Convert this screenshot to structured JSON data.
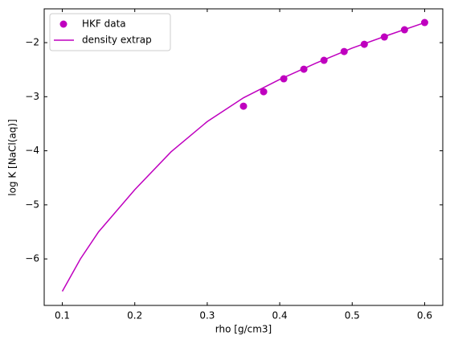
{
  "chart_data": {
    "type": "scatter",
    "xlabel": "rho [g/cm3]",
    "ylabel": "log K [NaCl(aq)]",
    "xlim": [
      0.075,
      0.625
    ],
    "ylim": [
      -6.86,
      -1.375
    ],
    "xticks": [
      0.1,
      0.2,
      0.3,
      0.4,
      0.5,
      0.6
    ],
    "yticks": [
      {
        "value": -6,
        "label": "−6"
      },
      {
        "value": -5,
        "label": "−5"
      },
      {
        "value": -4,
        "label": "−4"
      },
      {
        "value": -3,
        "label": "−3"
      },
      {
        "value": -2,
        "label": "−2"
      }
    ],
    "legend": "upper left",
    "series": [
      {
        "name": "HKF data",
        "type": "scatter",
        "color": "#bf00bf",
        "x": [
          0.35,
          0.3778,
          0.4056,
          0.4333,
          0.4611,
          0.4889,
          0.5167,
          0.5444,
          0.5722,
          0.6
        ],
        "values": [
          -3.175,
          -2.907,
          -2.669,
          -2.491,
          -2.327,
          -2.164,
          -2.03,
          -1.896,
          -1.762,
          -1.628
        ]
      },
      {
        "name": "density extrap",
        "type": "line",
        "color": "#bf00bf",
        "x": [
          0.1,
          0.125,
          0.15,
          0.2,
          0.25,
          0.3,
          0.35,
          0.4,
          0.45,
          0.5,
          0.55,
          0.6
        ],
        "values": [
          -6.6,
          -6.0,
          -5.5,
          -4.72,
          -4.02,
          -3.46,
          -3.02,
          -2.68,
          -2.38,
          -2.1,
          -1.86,
          -1.63
        ]
      }
    ]
  }
}
